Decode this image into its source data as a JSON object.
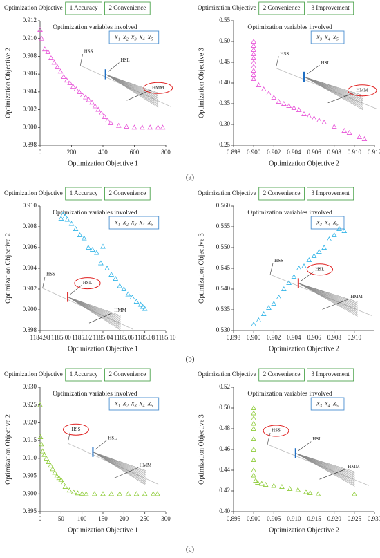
{
  "figure_labels": [
    "(a)",
    "(b)",
    "(c)"
  ],
  "chart_data": [
    {
      "type": "scatter",
      "objective_label": "Optimization Objective",
      "objectives": [
        "1 Accuracy",
        "2 Convenience"
      ],
      "inset_title": "Optimization variables involved",
      "variables": [
        "x₁",
        "x₂",
        "x₃",
        "x₄",
        "x₅"
      ],
      "algorithms": [
        "HSS",
        "HSL",
        "HMM"
      ],
      "circled": "HMM",
      "schematic_color": "#1f6fc4",
      "xlabel": "Optimization Objective 1",
      "ylabel": "Optimization Objective 2",
      "color": "#e855d8",
      "x": [
        0,
        10,
        30,
        50,
        70,
        90,
        110,
        130,
        150,
        170,
        190,
        210,
        230,
        250,
        270,
        290,
        310,
        330,
        350,
        370,
        390,
        410,
        430,
        450,
        500,
        550,
        600,
        650,
        700,
        750,
        780
      ],
      "values": [
        0.911,
        0.91,
        0.9088,
        0.9085,
        0.9078,
        0.9073,
        0.9068,
        0.9063,
        0.9057,
        0.9053,
        0.905,
        0.9046,
        0.9043,
        0.904,
        0.9036,
        0.9034,
        0.9031,
        0.9028,
        0.9024,
        0.902,
        0.9016,
        0.9012,
        0.9008,
        0.9005,
        0.9002,
        0.9001,
        0.9,
        0.9,
        0.9,
        0.9,
        0.9
      ],
      "xlim": [
        0,
        800
      ],
      "xticks": [
        0,
        200,
        400,
        600,
        800
      ],
      "ylim": [
        0.898,
        0.912
      ],
      "yticks": [
        0.898,
        {
          "value": 0.9,
          "label": "0.900"
        },
        0.902,
        0.904,
        0.906,
        0.908,
        {
          "value": 0.91,
          "label": "0.910"
        },
        0.912
      ]
    },
    {
      "type": "scatter",
      "objective_label": "Optimization Objective",
      "objectives": [
        "2 Convenience",
        "3 Improvement"
      ],
      "inset_title": "Optimization variables involved",
      "variables": [
        "x₃",
        "x₄",
        "x₅"
      ],
      "algorithms": [
        "HSS",
        "HSL",
        "HMM"
      ],
      "circled": "HMM",
      "schematic_color": "#1f6fc4",
      "xlabel": "Optimization Objective 2",
      "ylabel": "Optimization Objective 3",
      "color": "#e855d8",
      "x": [
        0.9,
        0.9,
        0.9,
        0.9,
        0.9,
        0.9,
        0.9,
        0.9,
        0.9,
        0.9,
        0.9005,
        0.901,
        0.9015,
        0.902,
        0.9025,
        0.903,
        0.9035,
        0.904,
        0.9045,
        0.905,
        0.9055,
        0.906,
        0.9065,
        0.907,
        0.908,
        0.909,
        0.9095,
        0.9105,
        0.911
      ],
      "values": [
        0.5,
        0.49,
        0.48,
        0.47,
        0.46,
        0.45,
        0.44,
        0.43,
        0.42,
        0.41,
        0.395,
        0.385,
        0.375,
        0.365,
        0.355,
        0.35,
        0.345,
        0.34,
        0.335,
        0.325,
        0.32,
        0.315,
        0.31,
        0.305,
        0.295,
        0.285,
        0.28,
        0.27,
        0.265
      ],
      "xlim": [
        0.898,
        0.912
      ],
      "xticks": [
        0.898,
        {
          "value": 0.9,
          "label": "0.900"
        },
        0.902,
        0.904,
        0.906,
        0.908,
        {
          "value": 0.91,
          "label": "0.910"
        },
        0.912
      ],
      "ylim": [
        0.25,
        0.55
      ],
      "yticks": [
        0.25,
        {
          "value": 0.3,
          "label": "0.30"
        },
        0.35,
        {
          "value": 0.4,
          "label": "0.40"
        },
        0.45,
        {
          "value": 0.5,
          "label": "0.50"
        },
        0.55
      ]
    },
    {
      "type": "scatter",
      "objective_label": "Optimization Objective",
      "objectives": [
        "1 Accuracy",
        "2 Convenience"
      ],
      "inset_title": "Optimization variables involved",
      "variables": [
        "x₁",
        "x₂",
        "x₃",
        "x₄",
        "x₅"
      ],
      "algorithms": [
        "HSS",
        "HSL",
        "HMM"
      ],
      "circled": "HSL",
      "schematic_color": "#e03030",
      "xlabel": "Optimization Objective 1",
      "ylabel": "Optimization Objective 2",
      "color": "#33b5e8",
      "x": [
        1185.0,
        1185.002,
        1185.004,
        1185.006,
        1185.01,
        1185.014,
        1185.018,
        1185.022,
        1185.026,
        1185.03,
        1185.034,
        1185.038,
        1185.04,
        1185.044,
        1185.048,
        1185.052,
        1185.056,
        1185.06,
        1185.064,
        1185.068,
        1185.072,
        1185.076,
        1185.078,
        1185.08
      ],
      "values": [
        0.9088,
        0.9092,
        0.909,
        0.9087,
        0.9083,
        0.9078,
        0.9072,
        0.9069,
        0.906,
        0.9058,
        0.9055,
        0.9045,
        0.9061,
        0.904,
        0.9034,
        0.903,
        0.9023,
        0.902,
        0.9015,
        0.9012,
        0.9008,
        0.9005,
        0.9003,
        0.9001
      ],
      "xlim": [
        1184.98,
        1185.1
      ],
      "xticks": [
        1184.98,
        {
          "value": 1185.0,
          "label": "1185.00"
        },
        1185.02,
        1185.04,
        1185.06,
        1185.08,
        {
          "value": 1185.1,
          "label": "1185.10"
        }
      ],
      "ylim": [
        0.898,
        0.91
      ],
      "yticks": [
        0.898,
        {
          "value": 0.9,
          "label": "0.900"
        },
        0.902,
        0.904,
        0.906,
        0.908,
        {
          "value": 0.91,
          "label": "0.910"
        }
      ]
    },
    {
      "type": "scatter",
      "objective_label": "Optimization Objective",
      "objectives": [
        "2 Convenience",
        "3 Improvement"
      ],
      "inset_title": "Optimization variables involved",
      "variables": [
        "x₃",
        "x₄",
        "x₅"
      ],
      "algorithms": [
        "HSS",
        "HSL",
        "HMM"
      ],
      "circled": "HSL",
      "schematic_color": "#e03030",
      "xlabel": "Optimization Objective 2",
      "ylabel": "Optimization Objective 3",
      "color": "#33b5e8",
      "x": [
        0.9,
        0.9005,
        0.901,
        0.9015,
        0.902,
        0.9025,
        0.903,
        0.9035,
        0.904,
        0.9045,
        0.905,
        0.9055,
        0.906,
        0.9065,
        0.907,
        0.9075,
        0.908,
        0.9085,
        0.909
      ],
      "values": [
        0.5315,
        0.5325,
        0.534,
        0.5355,
        0.5365,
        0.538,
        0.54,
        0.5415,
        0.543,
        0.545,
        0.5455,
        0.547,
        0.548,
        0.549,
        0.55,
        0.552,
        0.553,
        0.5545,
        0.554
      ],
      "xlim": [
        0.898,
        0.912
      ],
      "xticks": [
        0.898,
        {
          "value": 0.9,
          "label": "0.900"
        },
        0.902,
        0.904,
        0.906,
        0.908,
        {
          "value": 0.91,
          "label": "0.910"
        }
      ],
      "ylim": [
        0.53,
        0.56
      ],
      "yticks": [
        {
          "value": 0.53,
          "label": "0.530"
        },
        0.535,
        {
          "value": 0.54,
          "label": "0.540"
        },
        0.545,
        {
          "value": 0.55,
          "label": "0.550"
        },
        0.555,
        {
          "value": 0.56,
          "label": "0.560"
        }
      ]
    },
    {
      "type": "scatter",
      "objective_label": "Optimization Objective",
      "objectives": [
        "1 Accuracy",
        "2 Convenience"
      ],
      "inset_title": "Optimization variables involved",
      "variables": [
        "x₁",
        "x₂",
        "x₃",
        "x₄",
        "x₅"
      ],
      "algorithms": [
        "HSS",
        "HSL",
        "HMM"
      ],
      "circled": "HSS",
      "schematic_color": "#1f6fc4",
      "xlabel": "Optimization Objective 1",
      "ylabel": "Optimization Objective 2",
      "color": "#8fcc3a",
      "x": [
        0,
        1,
        3,
        6,
        10,
        15,
        20,
        25,
        30,
        35,
        40,
        45,
        50,
        55,
        60,
        70,
        80,
        90,
        100,
        110,
        130,
        150,
        170,
        190,
        210,
        230,
        250,
        270,
        280
      ],
      "values": [
        0.925,
        0.916,
        0.914,
        0.912,
        0.911,
        0.91,
        0.909,
        0.908,
        0.907,
        0.906,
        0.905,
        0.9045,
        0.904,
        0.903,
        0.902,
        0.901,
        0.9005,
        0.9002,
        0.9001,
        0.9,
        0.9,
        0.9,
        0.9,
        0.9,
        0.9,
        0.9,
        0.9,
        0.9,
        0.9
      ],
      "xlim": [
        0,
        300
      ],
      "xticks": [
        0,
        50,
        100,
        150,
        200,
        250,
        300
      ],
      "ylim": [
        0.895,
        0.93
      ],
      "yticks": [
        0.895,
        {
          "value": 0.9,
          "label": "0.900"
        },
        0.905,
        {
          "value": 0.91,
          "label": "0.910"
        },
        0.915,
        {
          "value": 0.92,
          "label": "0.920"
        },
        0.925,
        {
          "value": 0.93,
          "label": "0.930"
        }
      ]
    },
    {
      "type": "scatter",
      "objective_label": "Optimization Objective",
      "objectives": [
        "2 Convenience",
        "3 Improvement"
      ],
      "inset_title": "Optimization variables involved",
      "variables": [
        "x₃",
        "x₄",
        "x₅"
      ],
      "algorithms": [
        "HSS",
        "HSL",
        "HMM"
      ],
      "circled": "HSS",
      "schematic_color": "#1f6fc4",
      "xlabel": "Optimization Objective 2",
      "ylabel": "Optimization Objective 3",
      "color": "#8fcc3a",
      "x": [
        0.9,
        0.9,
        0.9,
        0.9,
        0.9,
        0.9,
        0.9,
        0.9,
        0.9,
        0.9,
        0.9005,
        0.901,
        0.902,
        0.903,
        0.905,
        0.907,
        0.909,
        0.911,
        0.913,
        0.914,
        0.916,
        0.925
      ],
      "values": [
        0.5,
        0.495,
        0.49,
        0.485,
        0.48,
        0.47,
        0.46,
        0.45,
        0.44,
        0.435,
        0.43,
        0.428,
        0.427,
        0.426,
        0.425,
        0.424,
        0.422,
        0.421,
        0.419,
        0.418,
        0.417,
        0.417
      ],
      "xlim": [
        0.895,
        0.93
      ],
      "xticks": [
        0.895,
        {
          "value": 0.9,
          "label": "0.900"
        },
        0.905,
        {
          "value": 0.91,
          "label": "0.910"
        },
        0.915,
        {
          "value": 0.92,
          "label": "0.920"
        },
        0.925,
        {
          "value": 0.93,
          "label": "0.930"
        }
      ],
      "ylim": [
        0.4,
        0.52
      ],
      "yticks": [
        {
          "value": 0.4,
          "label": "0.40"
        },
        0.42,
        0.44,
        0.46,
        0.48,
        {
          "value": 0.5,
          "label": "0.50"
        },
        0.52
      ]
    }
  ]
}
